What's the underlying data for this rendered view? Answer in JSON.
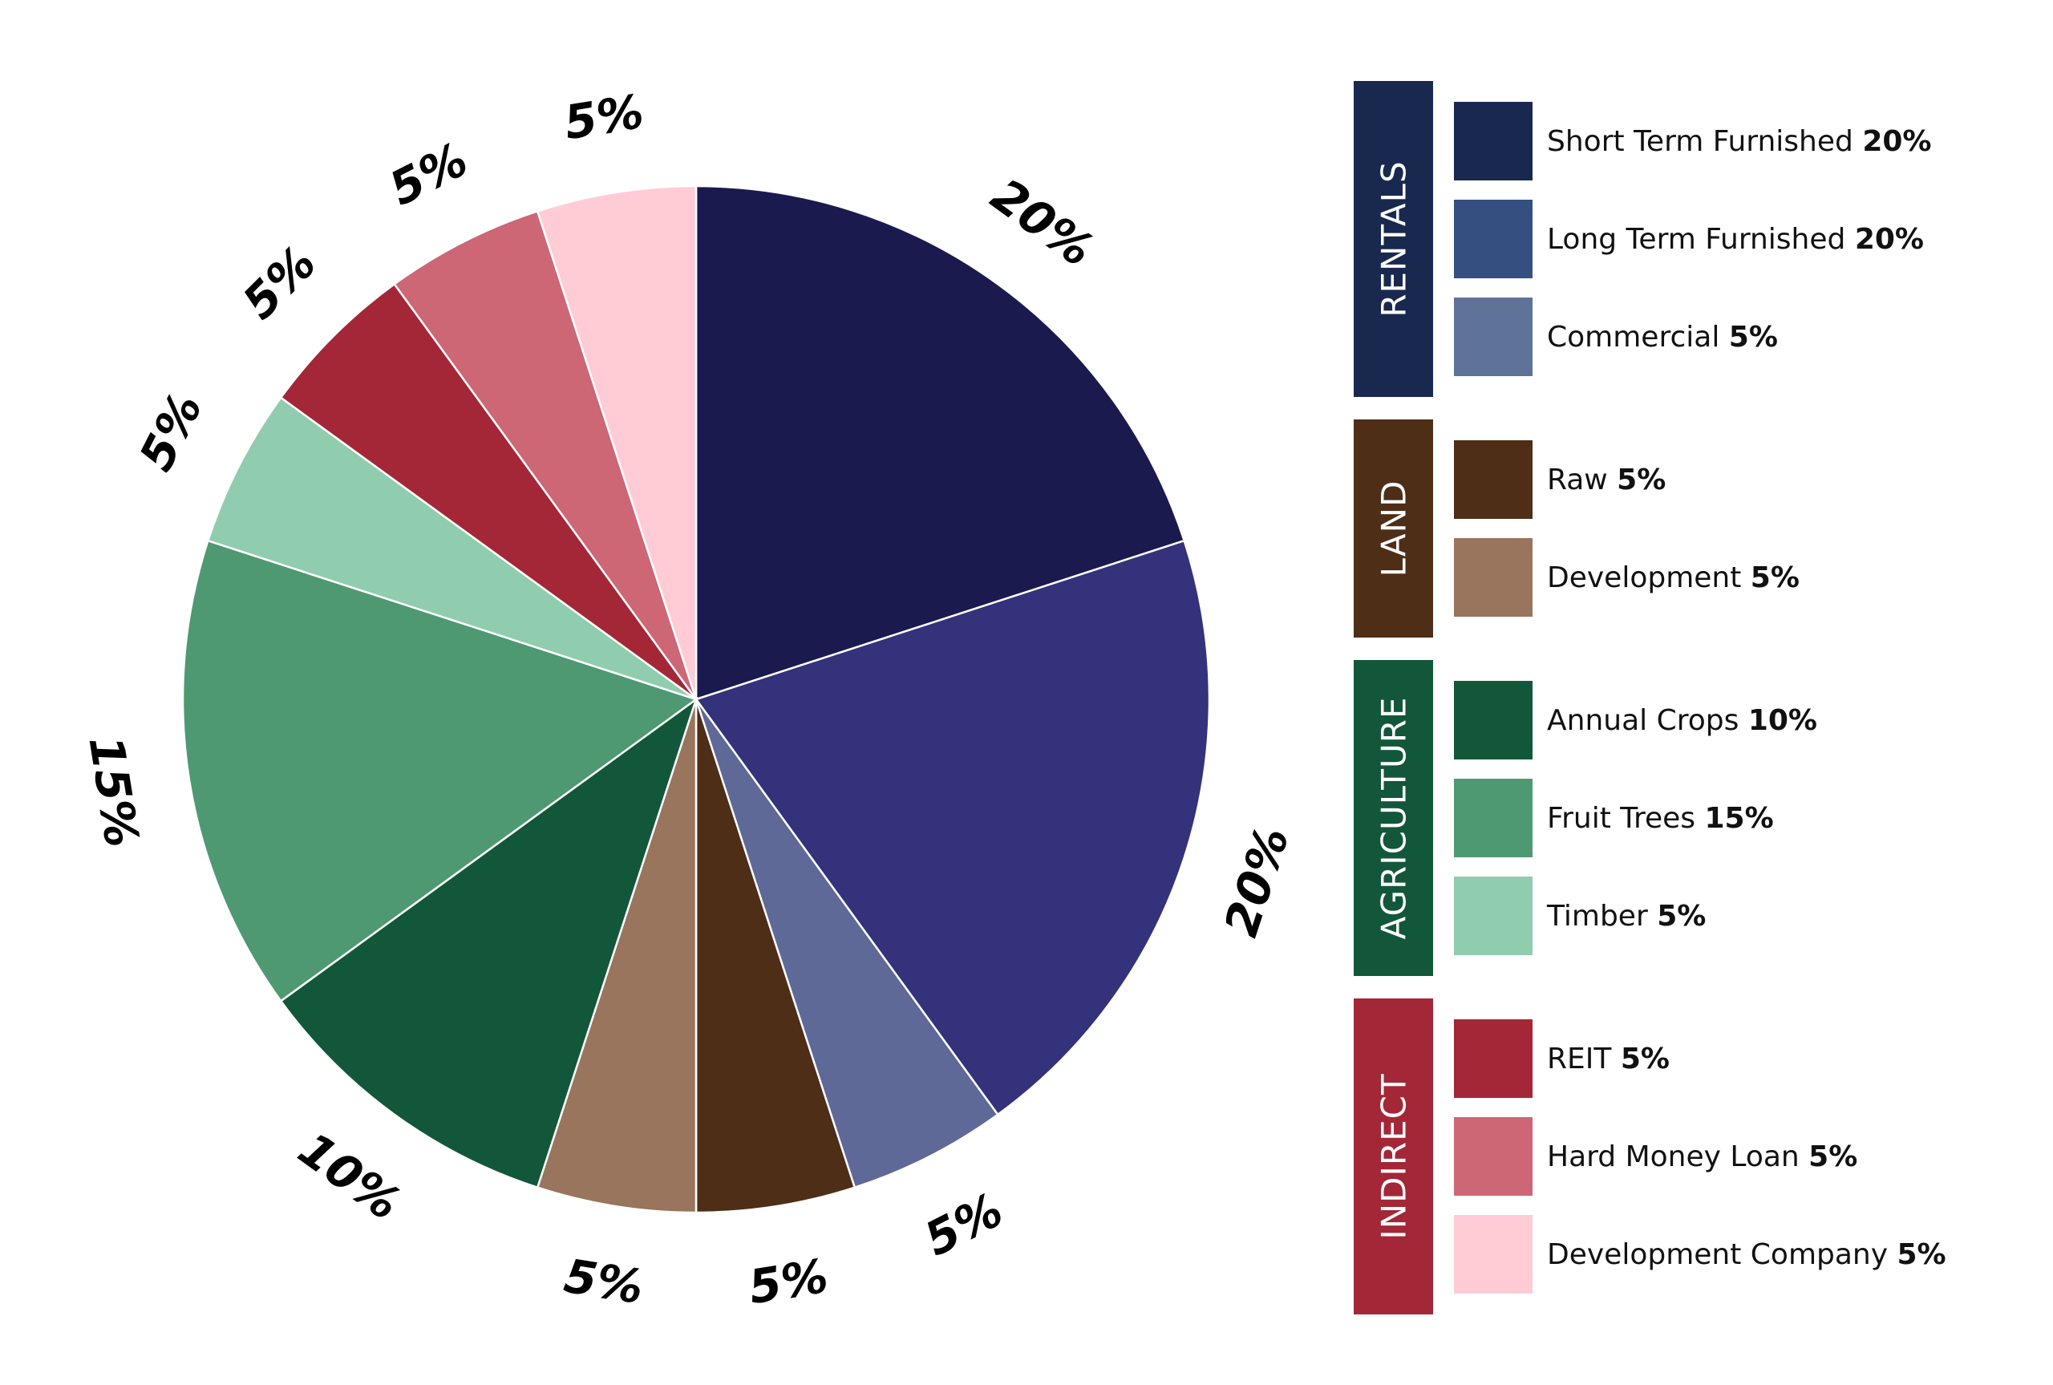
{
  "chart_data": {
    "type": "pie",
    "slices": [
      {
        "name": "Short Term Furnished",
        "value": 20,
        "label": "20%",
        "color": "#1b1a4e"
      },
      {
        "name": "Long Term Furnished",
        "value": 20,
        "label": "20%",
        "color": "#33327a"
      },
      {
        "name": "Commercial",
        "value": 5,
        "label": "5%",
        "color": "#5f6998"
      },
      {
        "name": "Raw",
        "value": 5,
        "label": "5%",
        "color": "#4e2e17"
      },
      {
        "name": "Development",
        "value": 5,
        "label": "5%",
        "color": "#98755c"
      },
      {
        "name": "Annual Crops",
        "value": 10,
        "label": "10%",
        "color": "#13573a"
      },
      {
        "name": "Fruit Trees",
        "value": 15,
        "label": "15%",
        "color": "#4e9971"
      },
      {
        "name": "Timber",
        "value": 5,
        "label": "5%",
        "color": "#90ccae"
      },
      {
        "name": "REIT",
        "value": 5,
        "label": "5%",
        "color": "#a42737"
      },
      {
        "name": "Hard Money Loan",
        "value": 5,
        "label": "5%",
        "color": "#cd6675"
      },
      {
        "name": "Development Company",
        "value": 5,
        "label": "5%",
        "color": "#ffccd5"
      }
    ],
    "start_angle_deg": 0,
    "direction": "clockwise",
    "legend_position": "right",
    "slice_border_color": "#ffffff"
  },
  "legend": {
    "groups": [
      {
        "title": "RENTALS",
        "color": "#19284f",
        "items": [
          {
            "name": "Short Term Furnished",
            "pct": "20%",
            "color": "#19284f"
          },
          {
            "name": "Long Term Furnished",
            "pct": "20%",
            "color": "#344f80"
          },
          {
            "name": "Commercial",
            "pct": "5%",
            "color": "#5f7298"
          }
        ]
      },
      {
        "title": "LAND",
        "color": "#4e2e17",
        "items": [
          {
            "name": "Raw",
            "pct": "5%",
            "color": "#4e2e17"
          },
          {
            "name": "Development",
            "pct": "5%",
            "color": "#98755c"
          }
        ]
      },
      {
        "title": "AGRICULTURE",
        "color": "#13573a",
        "items": [
          {
            "name": "Annual Crops",
            "pct": "10%",
            "color": "#13573a"
          },
          {
            "name": "Fruit Trees",
            "pct": "15%",
            "color": "#4e9971"
          },
          {
            "name": "Timber",
            "pct": "5%",
            "color": "#90ccae"
          }
        ]
      },
      {
        "title": "INDIRECT",
        "color": "#a42737",
        "items": [
          {
            "name": "REIT",
            "pct": "5%",
            "color": "#a42737"
          },
          {
            "name": "Hard Money Loan",
            "pct": "5%",
            "color": "#cd6675"
          },
          {
            "name": "Development Company",
            "pct": "5%",
            "color": "#ffccd5"
          }
        ]
      }
    ]
  }
}
